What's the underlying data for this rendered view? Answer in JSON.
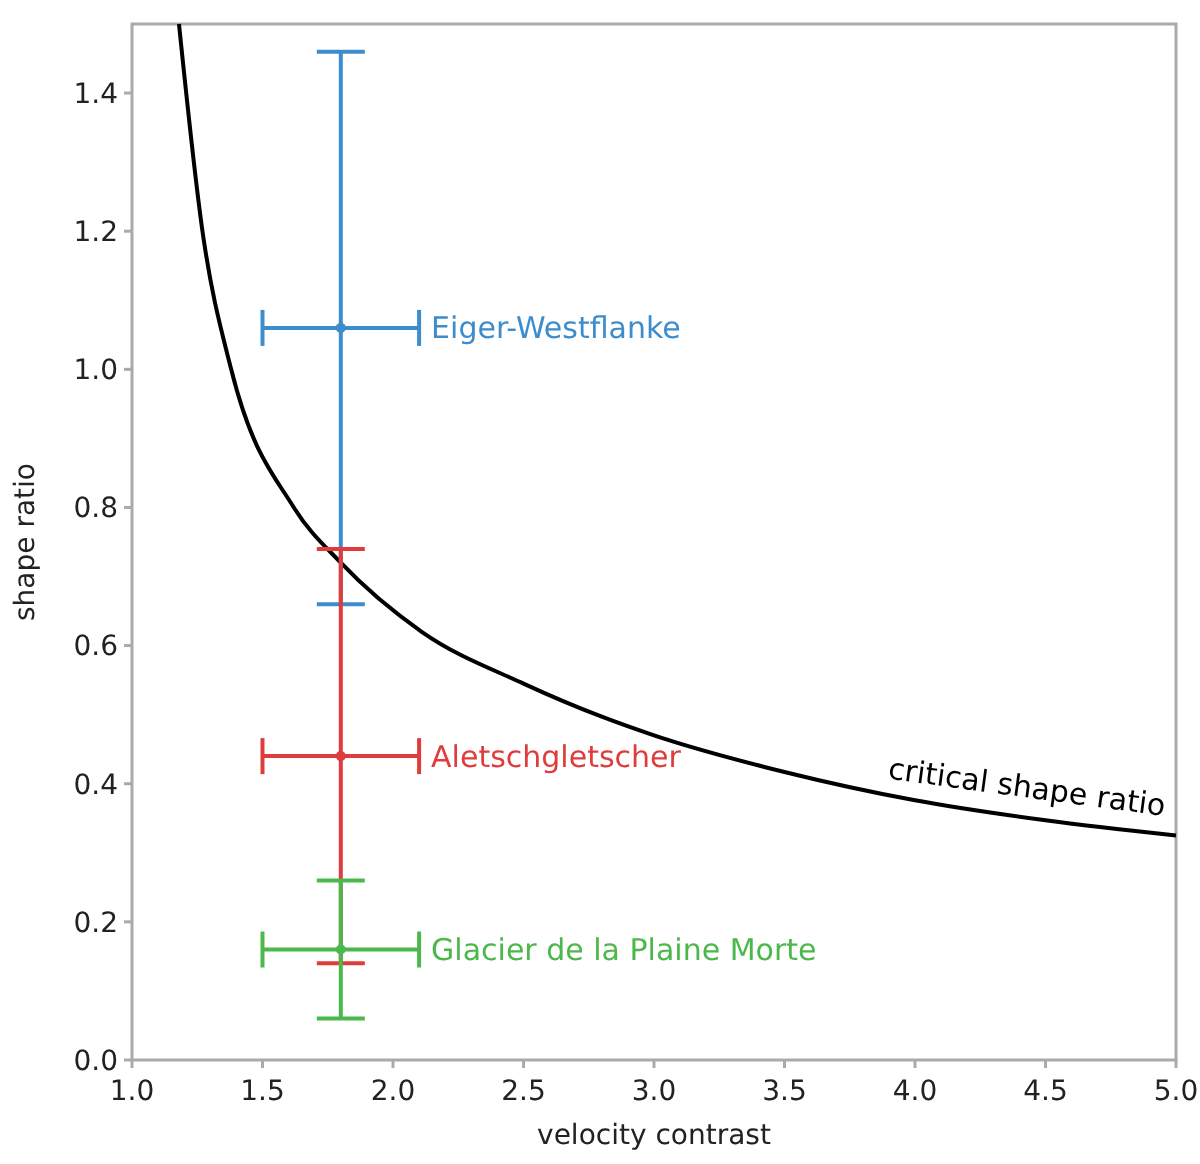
{
  "chart_data": {
    "type": "scatter",
    "xlabel": "velocity contrast",
    "ylabel": "shape ratio",
    "xlim": [
      1.0,
      5.0
    ],
    "ylim": [
      0,
      1.5
    ],
    "xticks": [
      {
        "value": 1.0,
        "label": "1.0"
      },
      {
        "value": 1.5,
        "label": "1.5"
      },
      {
        "value": 2.0,
        "label": "2.0"
      },
      {
        "value": 2.5,
        "label": "2.5"
      },
      {
        "value": 3.0,
        "label": "3.0"
      },
      {
        "value": 3.5,
        "label": "3.5"
      },
      {
        "value": 4.0,
        "label": "4.0"
      },
      {
        "value": 4.5,
        "label": "4.5"
      },
      {
        "value": 5.0,
        "label": "5.0"
      }
    ],
    "yticks": [
      {
        "value": 0,
        "label": "0.0"
      },
      {
        "value": 0.2,
        "label": "0.2"
      },
      {
        "value": 0.4,
        "label": "0.4"
      },
      {
        "value": 0.6,
        "label": "0.6"
      },
      {
        "value": 0.8,
        "label": "0.8"
      },
      {
        "value": 1.0,
        "label": "1.0"
      },
      {
        "value": 1.2,
        "label": "1.2"
      },
      {
        "value": 1.4,
        "label": "1.4"
      }
    ],
    "grid": false,
    "series": [
      {
        "name": "critical shape ratio",
        "type": "line",
        "color": "#000000",
        "x": [
          1.18,
          1.27,
          1.38,
          1.62,
          1.8,
          2.11,
          2.5,
          2.8,
          3.0,
          3.5,
          4.0,
          4.5,
          5.0
        ],
        "values": [
          1.5,
          1.2,
          1.0,
          0.8,
          0.72,
          0.62,
          0.545,
          0.497,
          0.47,
          0.417,
          0.376,
          0.347,
          0.325
        ]
      },
      {
        "name": "Eiger-Westflanke",
        "color": "#3d8ccc",
        "x": [
          1.8
        ],
        "values": [
          1.06
        ],
        "errors": [
          [
            0.66,
            1.46
          ]
        ],
        "xerrors": [
          [
            1.5,
            2.1
          ]
        ]
      },
      {
        "name": "Aletschgletscher",
        "color": "#e03c3c",
        "x": [
          1.8
        ],
        "values": [
          0.44
        ],
        "errors": [
          [
            0.14,
            0.74
          ]
        ],
        "xerrors": [
          [
            1.5,
            2.1
          ]
        ]
      },
      {
        "name": "Glacier de la Plaine Morte",
        "color": "#4cb84c",
        "x": [
          1.8
        ],
        "values": [
          0.16
        ],
        "errors": [
          [
            0.06,
            0.26
          ]
        ],
        "xerrors": [
          [
            1.5,
            2.1
          ]
        ]
      }
    ]
  }
}
